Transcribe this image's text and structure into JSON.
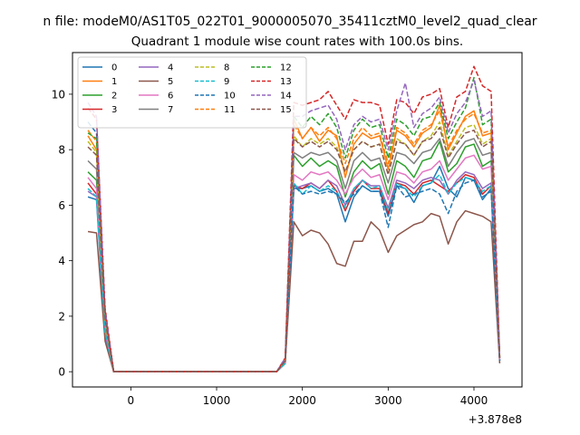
{
  "figure": {
    "suptitle": "n file: modeM0/AS1T05_022T01_9000005070_35411cztM0_level2_quad_clear",
    "title": "Quadrant 1 module wise count rates with 100.0s bins.",
    "offset_label": "+3.878e8"
  },
  "chart_data": {
    "type": "line",
    "title": "Quadrant 1 module wise count rates with 100.0s bins.",
    "xlabel": "",
    "ylabel": "",
    "x_offset": 387800000,
    "xlim": [
      -680,
      4560
    ],
    "ylim": [
      -0.55,
      11.5
    ],
    "xticks": [
      0,
      1000,
      2000,
      3000,
      4000
    ],
    "xtick_labels": [
      "0",
      "1000",
      "2000",
      "3000",
      "4000"
    ],
    "yticks": [
      0,
      2,
      4,
      6,
      8,
      10
    ],
    "ytick_labels": [
      "0",
      "2",
      "4",
      "6",
      "8",
      "10"
    ],
    "grid": false,
    "legend": {
      "placement": "upper-left",
      "columns": 4
    },
    "x": [
      -500,
      -400,
      -300,
      -200,
      -100,
      0,
      100,
      200,
      300,
      400,
      500,
      600,
      700,
      800,
      900,
      1000,
      1100,
      1200,
      1300,
      1400,
      1500,
      1600,
      1700,
      1800,
      1900,
      2000,
      2100,
      2200,
      2300,
      2400,
      2500,
      2600,
      2700,
      2800,
      2900,
      3000,
      3100,
      3200,
      3300,
      3400,
      3500,
      3600,
      3700,
      3800,
      3900,
      4000,
      4100,
      4200,
      4300
    ],
    "series": [
      {
        "name": "0",
        "color": "#1f77b4",
        "dashed": false,
        "values": [
          6.3,
          6.2,
          1.2,
          0,
          0,
          0,
          0,
          0,
          0,
          0,
          0,
          0,
          0,
          0,
          0,
          0,
          0,
          0,
          0,
          0,
          0,
          0,
          0,
          0.3,
          6.6,
          6.6,
          6.7,
          6.5,
          6.6,
          6.4,
          5.4,
          6.3,
          6.7,
          6.5,
          6.5,
          5.6,
          6.7,
          6.6,
          6.1,
          6.7,
          6.8,
          7.4,
          6.6,
          6.3,
          7.0,
          6.9,
          6.2,
          6.6,
          0.4
        ]
      },
      {
        "name": "1",
        "color": "#ff7f0e",
        "dashed": false,
        "values": [
          8.5,
          8.0,
          2.0,
          0,
          0,
          0,
          0,
          0,
          0,
          0,
          0,
          0,
          0,
          0,
          0,
          0,
          0,
          0,
          0,
          0,
          0,
          0,
          0,
          0.4,
          9.1,
          8.4,
          8.8,
          8.3,
          8.7,
          8.5,
          7.0,
          8.2,
          8.6,
          8.4,
          8.5,
          7.3,
          8.7,
          8.5,
          8.1,
          8.6,
          8.8,
          9.6,
          8.0,
          8.6,
          9.2,
          9.4,
          8.5,
          8.6,
          0.5
        ]
      },
      {
        "name": "2",
        "color": "#2ca02c",
        "dashed": false,
        "values": [
          7.2,
          6.9,
          1.6,
          0,
          0,
          0,
          0,
          0,
          0,
          0,
          0,
          0,
          0,
          0,
          0,
          0,
          0,
          0,
          0,
          0,
          0,
          0,
          0,
          0.4,
          7.8,
          7.4,
          7.7,
          7.4,
          7.6,
          7.4,
          6.3,
          7.2,
          7.6,
          7.3,
          7.5,
          6.4,
          7.6,
          7.4,
          7.0,
          7.6,
          7.7,
          8.3,
          7.2,
          7.5,
          8.1,
          8.2,
          7.4,
          7.6,
          0.5
        ]
      },
      {
        "name": "3",
        "color": "#d62728",
        "dashed": false,
        "values": [
          6.8,
          6.4,
          2.2,
          0,
          0,
          0,
          0,
          0,
          0,
          0,
          0,
          0,
          0,
          0,
          0,
          0,
          0,
          0,
          0,
          0,
          0,
          0,
          0,
          0.3,
          6.7,
          6.6,
          6.8,
          6.6,
          6.9,
          6.5,
          5.8,
          6.5,
          6.9,
          6.6,
          6.6,
          5.7,
          6.8,
          6.7,
          6.4,
          6.8,
          6.9,
          6.7,
          6.5,
          6.8,
          7.1,
          7.0,
          6.4,
          6.7,
          0.4
        ]
      },
      {
        "name": "4",
        "color": "#9467bd",
        "dashed": false,
        "values": [
          6.5,
          6.3,
          1.3,
          0,
          0,
          0,
          0,
          0,
          0,
          0,
          0,
          0,
          0,
          0,
          0,
          0,
          0,
          0,
          0,
          0,
          0,
          0,
          0,
          0.3,
          6.6,
          6.7,
          6.8,
          6.6,
          6.9,
          6.7,
          6.0,
          6.6,
          6.9,
          6.7,
          6.7,
          5.9,
          6.9,
          6.8,
          6.6,
          6.9,
          7.0,
          6.9,
          6.4,
          6.9,
          7.2,
          7.1,
          6.6,
          6.8,
          0.4
        ]
      },
      {
        "name": "5",
        "color": "#8c564b",
        "dashed": false,
        "values": [
          5.05,
          5.0,
          1.1,
          0,
          0,
          0,
          0,
          0,
          0,
          0,
          0,
          0,
          0,
          0,
          0,
          0,
          0,
          0,
          0,
          0,
          0,
          0,
          0,
          0.3,
          5.4,
          4.9,
          5.1,
          5.0,
          4.6,
          3.9,
          3.8,
          4.7,
          4.7,
          5.4,
          5.1,
          4.3,
          4.9,
          5.1,
          5.3,
          5.4,
          5.7,
          5.6,
          4.6,
          5.4,
          5.8,
          5.7,
          5.6,
          5.4,
          0.3
        ]
      },
      {
        "name": "6",
        "color": "#e377c2",
        "dashed": false,
        "values": [
          7.0,
          6.6,
          1.5,
          0,
          0,
          0,
          0,
          0,
          0,
          0,
          0,
          0,
          0,
          0,
          0,
          0,
          0,
          0,
          0,
          0,
          0,
          0,
          0,
          0.3,
          7.1,
          6.9,
          7.2,
          7.1,
          7.2,
          6.9,
          6.4,
          7.0,
          7.3,
          7.0,
          7.1,
          6.2,
          7.2,
          7.1,
          6.8,
          7.2,
          7.3,
          7.6,
          6.9,
          7.3,
          7.7,
          7.8,
          7.3,
          7.4,
          0.4
        ]
      },
      {
        "name": "7",
        "color": "#7f7f7f",
        "dashed": false,
        "values": [
          7.6,
          7.3,
          1.7,
          0,
          0,
          0,
          0,
          0,
          0,
          0,
          0,
          0,
          0,
          0,
          0,
          0,
          0,
          0,
          0,
          0,
          0,
          0,
          0,
          0.4,
          7.9,
          7.7,
          7.9,
          7.8,
          7.9,
          7.6,
          6.6,
          7.6,
          7.9,
          7.6,
          7.7,
          6.8,
          7.9,
          7.8,
          7.5,
          7.9,
          8.0,
          8.4,
          7.4,
          7.9,
          8.3,
          8.4,
          7.8,
          7.9,
          0.5
        ]
      },
      {
        "name": "8",
        "color": "#bcbd22",
        "dashed": true,
        "values": [
          8.3,
          7.9,
          1.8,
          0,
          0,
          0,
          0,
          0,
          0,
          0,
          0,
          0,
          0,
          0,
          0,
          0,
          0,
          0,
          0,
          0,
          0,
          0,
          0,
          0.4,
          8.5,
          8.1,
          8.4,
          8.2,
          8.4,
          8.1,
          7.2,
          8.0,
          8.3,
          8.1,
          8.2,
          7.1,
          8.4,
          8.2,
          7.8,
          8.3,
          8.5,
          9.0,
          7.8,
          8.3,
          8.8,
          8.9,
          8.2,
          8.4,
          0.5
        ]
      },
      {
        "name": "9",
        "color": "#17becf",
        "dashed": true,
        "values": [
          6.6,
          6.3,
          1.4,
          0,
          0,
          0,
          0,
          0,
          0,
          0,
          0,
          0,
          0,
          0,
          0,
          0,
          0,
          0,
          0,
          0,
          0,
          0,
          0,
          0.3,
          6.8,
          6.4,
          6.7,
          6.5,
          6.7,
          6.5,
          5.9,
          6.6,
          6.9,
          6.6,
          6.7,
          5.8,
          6.8,
          6.6,
          6.3,
          6.7,
          6.8,
          7.1,
          6.4,
          6.8,
          7.0,
          6.9,
          6.5,
          6.7,
          0.4
        ]
      },
      {
        "name": "10",
        "color": "#1f77b4",
        "dashed": true,
        "values": [
          9.0,
          8.6,
          2.0,
          0,
          0,
          0,
          0,
          0,
          0,
          0,
          0,
          0,
          0,
          0,
          0,
          0,
          0,
          0,
          0,
          0,
          0,
          0,
          0,
          0.4,
          6.7,
          6.4,
          6.5,
          6.4,
          6.5,
          6.4,
          6.1,
          6.4,
          6.7,
          6.5,
          6.5,
          5.2,
          6.7,
          6.3,
          6.4,
          6.5,
          6.6,
          6.4,
          5.7,
          6.5,
          6.8,
          6.9,
          6.3,
          6.5,
          0.4
        ]
      },
      {
        "name": "11",
        "color": "#ff7f0e",
        "dashed": true,
        "values": [
          8.7,
          8.3,
          2.1,
          0,
          0,
          0,
          0,
          0,
          0,
          0,
          0,
          0,
          0,
          0,
          0,
          0,
          0,
          0,
          0,
          0,
          0,
          0,
          0,
          0.4,
          8.9,
          8.4,
          8.8,
          8.5,
          8.8,
          8.4,
          7.5,
          8.4,
          8.8,
          8.5,
          8.6,
          7.5,
          8.8,
          8.6,
          8.2,
          8.7,
          8.9,
          9.4,
          8.1,
          8.7,
          9.1,
          9.3,
          8.6,
          8.7,
          0.5
        ]
      },
      {
        "name": "12",
        "color": "#2ca02c",
        "dashed": true,
        "values": [
          8.6,
          8.4,
          2.1,
          0,
          0,
          0,
          0,
          0,
          0,
          0,
          0,
          0,
          0,
          0,
          0,
          0,
          0,
          0,
          0,
          0,
          0,
          0,
          0,
          0.4,
          9.2,
          8.8,
          9.2,
          8.9,
          9.3,
          8.8,
          7.7,
          8.7,
          9.1,
          8.8,
          8.9,
          7.7,
          9.1,
          8.9,
          8.5,
          9.1,
          9.2,
          9.7,
          8.4,
          9.0,
          9.5,
          10.6,
          8.9,
          9.1,
          0.5
        ]
      },
      {
        "name": "13",
        "color": "#d62728",
        "dashed": true,
        "values": [
          9.5,
          9.1,
          2.3,
          0,
          0,
          0,
          0,
          0,
          0,
          0,
          0,
          0,
          0,
          0,
          0,
          0,
          0,
          0,
          0,
          0,
          0,
          0,
          0,
          0.5,
          9.7,
          9.6,
          9.7,
          9.8,
          10.1,
          9.6,
          9.1,
          9.8,
          9.7,
          9.7,
          9.6,
          8.2,
          9.8,
          9.7,
          9.3,
          9.9,
          10.0,
          10.2,
          8.8,
          9.9,
          10.1,
          11.0,
          10.3,
          10.1,
          0.5
        ]
      },
      {
        "name": "14",
        "color": "#9467bd",
        "dashed": true,
        "values": [
          9.7,
          9.2,
          2.2,
          0,
          0,
          0,
          0,
          0,
          0,
          0,
          0,
          0,
          0,
          0,
          0,
          0,
          0,
          0,
          0,
          0,
          0,
          0,
          0,
          0.5,
          9.2,
          9.2,
          9.4,
          9.5,
          9.6,
          9.1,
          8.0,
          8.9,
          9.2,
          9.0,
          9.1,
          8.0,
          9.4,
          10.4,
          8.8,
          9.3,
          9.5,
          9.9,
          8.6,
          9.3,
          9.7,
          10.5,
          9.2,
          9.4,
          0.5
        ]
      },
      {
        "name": "15",
        "color": "#8c564b",
        "dashed": true,
        "values": [
          8.1,
          7.8,
          1.9,
          0,
          0,
          0,
          0,
          0,
          0,
          0,
          0,
          0,
          0,
          0,
          0,
          0,
          0,
          0,
          0,
          0,
          0,
          0,
          0,
          0.4,
          8.4,
          8.1,
          8.3,
          8.1,
          8.3,
          8.0,
          7.2,
          8.0,
          8.3,
          8.1,
          8.2,
          7.1,
          8.3,
          8.2,
          7.8,
          8.3,
          8.4,
          8.8,
          7.7,
          8.2,
          8.6,
          8.7,
          8.1,
          8.3,
          0.5
        ]
      }
    ]
  }
}
